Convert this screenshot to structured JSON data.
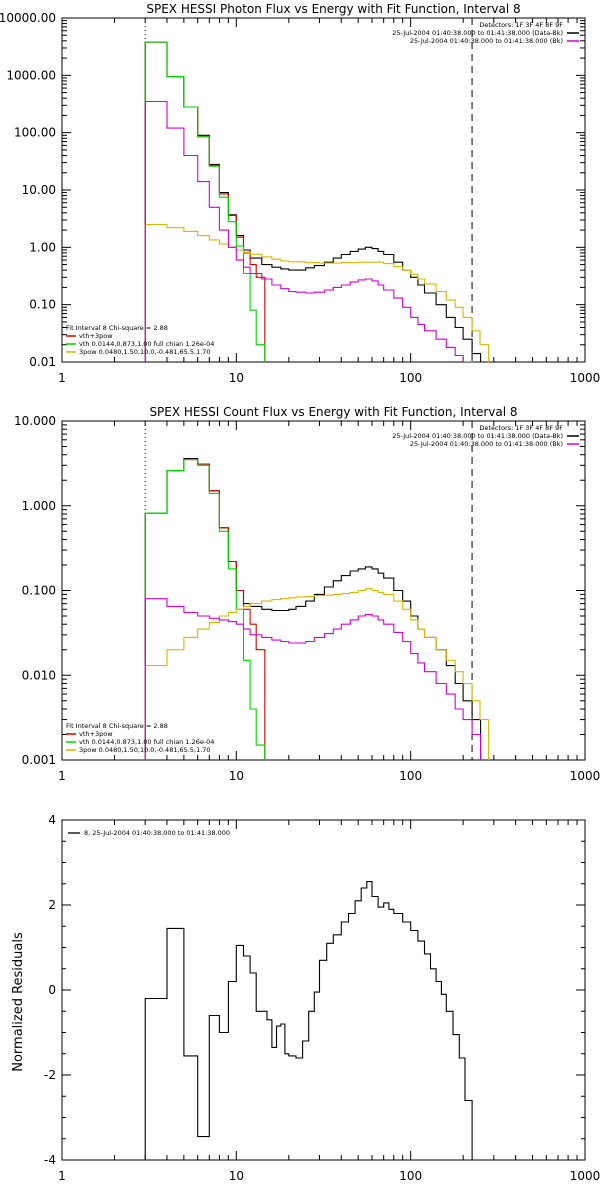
{
  "chart_data": [
    {
      "type": "line",
      "title": "SPEX HESSI Photon Flux vs Energy with Fit Function, Interval 8",
      "scale": "log-log",
      "xlim": [
        1,
        1000
      ],
      "ylim": [
        0.01,
        10000
      ],
      "x_ticks": [
        "1",
        "10",
        "100",
        "1000"
      ],
      "y_ticks": [
        "0.01",
        "0.10",
        "1.00",
        "10.00",
        "100.00",
        "1000.00",
        "10000.00"
      ],
      "vlines": [
        {
          "x": 3,
          "style": "dotted"
        },
        {
          "x": 225,
          "style": "dashed"
        }
      ],
      "legend_top": [
        "Detectors: 1F 3F 4F 8F 9F",
        "25-Jul-2004 01:40:38.000 to 01:41:38.000 (Data-Bk)",
        "25-Jul-2004 01:40:38.000 to 01:41:38.000 (Bk)"
      ],
      "legend_top_colors": [
        "",
        "#000000",
        "#d100d1"
      ],
      "legend_bottom": [
        "Fit Interval 8   Chi-square = 2.88",
        "vth+3pow",
        "vth 0.0144,0.873,1.00  full chian 1.26e-04",
        "3pow 0.0480,1.50,10.0,-0.481,65.5,1.70"
      ],
      "legend_bottom_colors": [
        "",
        "#d40000",
        "#00d200",
        "#d6b800"
      ],
      "series": [
        {
          "color": "#000000",
          "x": [
            3,
            4,
            5,
            6,
            7,
            8,
            9,
            10,
            11,
            12,
            14,
            16,
            18,
            20,
            22,
            25,
            28,
            32,
            36,
            40,
            45,
            50,
            55,
            60,
            65,
            70,
            80,
            90,
            100,
            110,
            120,
            140,
            160,
            180,
            200,
            225
          ],
          "y": [
            3800,
            950,
            280,
            90,
            28,
            9,
            3.7,
            1.6,
            0.9,
            0.65,
            0.5,
            0.45,
            0.42,
            0.4,
            0.4,
            0.44,
            0.48,
            0.55,
            0.65,
            0.75,
            0.85,
            0.93,
            1.0,
            0.95,
            0.85,
            0.75,
            0.55,
            0.4,
            0.3,
            0.22,
            0.16,
            0.1,
            0.06,
            0.04,
            0.025,
            0.014
          ]
        },
        {
          "color": "#d40000",
          "x": [
            3,
            4,
            5,
            6,
            7,
            8,
            9,
            10,
            11,
            12,
            13
          ],
          "y": [
            3800,
            950,
            280,
            85,
            27,
            8.5,
            3.6,
            1.5,
            0.8,
            0.5,
            0.3
          ]
        },
        {
          "color": "#00d200",
          "x": [
            3,
            4,
            5,
            6,
            7,
            8,
            9,
            10,
            11,
            12,
            13
          ],
          "y": [
            3800,
            950,
            280,
            85,
            26,
            7.5,
            2.8,
            1.05,
            0.35,
            0.08,
            0.02
          ]
        },
        {
          "color": "#d6b800",
          "x": [
            3,
            4,
            5,
            6,
            7,
            8,
            9,
            10,
            11,
            12,
            14,
            16,
            18,
            20,
            25,
            30,
            35,
            40,
            50,
            60,
            70,
            80,
            90,
            100,
            110,
            120,
            140,
            160,
            180,
            200,
            225,
            250
          ],
          "y": [
            2.5,
            2.2,
            1.9,
            1.6,
            1.35,
            1.15,
            1.0,
            0.9,
            0.82,
            0.76,
            0.68,
            0.62,
            0.58,
            0.56,
            0.54,
            0.53,
            0.53,
            0.54,
            0.55,
            0.55,
            0.52,
            0.46,
            0.4,
            0.34,
            0.28,
            0.23,
            0.17,
            0.12,
            0.09,
            0.06,
            0.035,
            0.02
          ]
        },
        {
          "color": "#d100d1",
          "x": [
            3,
            4,
            5,
            6,
            7,
            8,
            9,
            10,
            11,
            12,
            14,
            16,
            18,
            20,
            22,
            25,
            28,
            32,
            36,
            40,
            45,
            50,
            55,
            60,
            65,
            70,
            80,
            90,
            100,
            110,
            120,
            140,
            160,
            180,
            200,
            225
          ],
          "y": [
            350,
            120,
            40,
            14,
            5,
            2,
            1.0,
            0.6,
            0.45,
            0.35,
            0.28,
            0.22,
            0.19,
            0.17,
            0.165,
            0.16,
            0.165,
            0.18,
            0.2,
            0.22,
            0.25,
            0.27,
            0.28,
            0.26,
            0.22,
            0.18,
            0.13,
            0.09,
            0.06,
            0.045,
            0.035,
            0.025,
            0.018,
            0.013,
            0.01,
            0.007
          ]
        }
      ]
    },
    {
      "type": "line",
      "title": "SPEX HESSI Count Flux vs Energy with Fit Function, Interval 8",
      "scale": "log-log",
      "xlim": [
        1,
        1000
      ],
      "ylim": [
        0.001,
        10
      ],
      "x_ticks": [
        "1",
        "10",
        "100",
        "1000"
      ],
      "y_ticks": [
        "0.001",
        "0.010",
        "0.100",
        "1.000",
        "10.000"
      ],
      "vlines": [
        {
          "x": 3,
          "style": "dotted"
        },
        {
          "x": 225,
          "style": "dashed"
        }
      ],
      "legend_top": [
        "Detectors: 1F 3F 4F 8F 9F",
        "25-Jul-2004 01:40:38.000 to 01:41:38.000 (Data-Bk)",
        "25-Jul-2004 01:40:38.000 to 01:41:38.000 (Bk)"
      ],
      "legend_top_colors": [
        "",
        "#000000",
        "#d100d1"
      ],
      "legend_bottom": [
        "Fit Interval 8   Chi-square = 2.88",
        "vth+3pow",
        "vth 0.0144,0.873,1.00  full chian 1.26e-04",
        "3pow 0.0480,1.50,10.0,-0.481,65.5,1.70"
      ],
      "legend_bottom_colors": [
        "",
        "#d40000",
        "#00d200",
        "#d6b800"
      ],
      "series": [
        {
          "color": "#000000",
          "x": [
            3,
            4,
            5,
            6,
            7,
            8,
            9,
            10,
            11,
            12,
            14,
            16,
            18,
            20,
            22,
            25,
            28,
            32,
            36,
            40,
            45,
            50,
            55,
            60,
            65,
            70,
            80,
            90,
            100,
            110,
            120,
            140,
            160,
            180,
            200,
            225
          ],
          "y": [
            0.82,
            2.6,
            3.6,
            3.1,
            1.5,
            0.55,
            0.22,
            0.1,
            0.07,
            0.065,
            0.06,
            0.058,
            0.058,
            0.06,
            0.065,
            0.075,
            0.09,
            0.11,
            0.13,
            0.15,
            0.17,
            0.18,
            0.19,
            0.18,
            0.16,
            0.14,
            0.1,
            0.075,
            0.05,
            0.035,
            0.028,
            0.02,
            0.013,
            0.008,
            0.005,
            0.003
          ]
        },
        {
          "color": "#d40000",
          "x": [
            3,
            4,
            5,
            6,
            7,
            8,
            9,
            10,
            11,
            12,
            13
          ],
          "y": [
            0.82,
            2.6,
            3.5,
            3.1,
            1.5,
            0.55,
            0.22,
            0.1,
            0.06,
            0.04,
            0.02
          ]
        },
        {
          "color": "#00d200",
          "x": [
            3,
            4,
            5,
            6,
            7,
            8,
            9,
            10,
            11,
            12,
            13
          ],
          "y": [
            0.82,
            2.6,
            3.5,
            3.0,
            1.4,
            0.5,
            0.18,
            0.06,
            0.015,
            0.004,
            0.0015
          ]
        },
        {
          "color": "#d6b800",
          "x": [
            3,
            4,
            5,
            6,
            7,
            8,
            9,
            10,
            11,
            12,
            14,
            16,
            18,
            20,
            22,
            25,
            28,
            32,
            36,
            40,
            45,
            50,
            55,
            60,
            65,
            70,
            80,
            90,
            100,
            110,
            120,
            140,
            160,
            180,
            200,
            225,
            250
          ],
          "y": [
            0.013,
            0.02,
            0.028,
            0.035,
            0.042,
            0.05,
            0.055,
            0.06,
            0.065,
            0.07,
            0.075,
            0.078,
            0.08,
            0.082,
            0.084,
            0.085,
            0.087,
            0.088,
            0.09,
            0.092,
            0.095,
            0.1,
            0.105,
            0.1,
            0.095,
            0.09,
            0.075,
            0.06,
            0.045,
            0.035,
            0.028,
            0.02,
            0.015,
            0.011,
            0.008,
            0.005,
            0.003
          ]
        },
        {
          "color": "#d100d1",
          "x": [
            3,
            4,
            5,
            6,
            7,
            8,
            9,
            10,
            11,
            12,
            14,
            16,
            18,
            20,
            22,
            25,
            28,
            32,
            36,
            40,
            45,
            50,
            55,
            60,
            65,
            70,
            80,
            90,
            100,
            110,
            120,
            140,
            160,
            180,
            200,
            225
          ],
          "y": [
            0.08,
            0.065,
            0.055,
            0.05,
            0.047,
            0.045,
            0.043,
            0.04,
            0.035,
            0.03,
            0.028,
            0.026,
            0.025,
            0.024,
            0.024,
            0.025,
            0.028,
            0.031,
            0.035,
            0.04,
            0.045,
            0.05,
            0.052,
            0.05,
            0.045,
            0.04,
            0.032,
            0.025,
            0.018,
            0.014,
            0.011,
            0.008,
            0.006,
            0.004,
            0.003,
            0.002
          ]
        }
      ]
    },
    {
      "type": "line",
      "title": "",
      "scale": "log-x",
      "xlim": [
        1,
        1000
      ],
      "ylim": [
        -4,
        4
      ],
      "x_ticks": [
        "1",
        "10",
        "100",
        "1000"
      ],
      "y_ticks": [
        "-4",
        "-2",
        "0",
        "2",
        "4"
      ],
      "ylabel": "Normalized Residuals",
      "legend_top_left": "8, 25-Jul-2004 01:40:38.000 to 01:41:38.000",
      "series": [
        {
          "color": "#000000",
          "x": [
            3,
            4,
            5,
            6,
            7,
            8,
            9,
            10,
            11,
            12,
            13,
            14,
            15,
            16,
            17,
            18,
            19,
            20,
            22,
            24,
            26,
            28,
            30,
            33,
            36,
            40,
            44,
            48,
            52,
            56,
            60,
            65,
            70,
            75,
            80,
            90,
            100,
            110,
            120,
            130,
            140,
            150,
            160,
            175,
            190,
            205,
            225
          ],
          "y": [
            -0.2,
            1.45,
            -1.55,
            -3.45,
            -0.6,
            -1.0,
            0.2,
            1.05,
            0.8,
            0.4,
            -0.5,
            -0.5,
            -0.7,
            -1.35,
            -0.85,
            -0.8,
            -1.5,
            -1.55,
            -1.6,
            -1.2,
            -0.5,
            -0.05,
            0.7,
            1.1,
            1.3,
            1.6,
            1.8,
            2.1,
            2.4,
            2.55,
            2.2,
            1.95,
            2.05,
            1.9,
            1.8,
            1.6,
            1.4,
            1.15,
            0.85,
            0.5,
            0.2,
            -0.1,
            -0.5,
            -1.05,
            -1.6,
            -2.6,
            -4.0
          ]
        }
      ]
    }
  ]
}
